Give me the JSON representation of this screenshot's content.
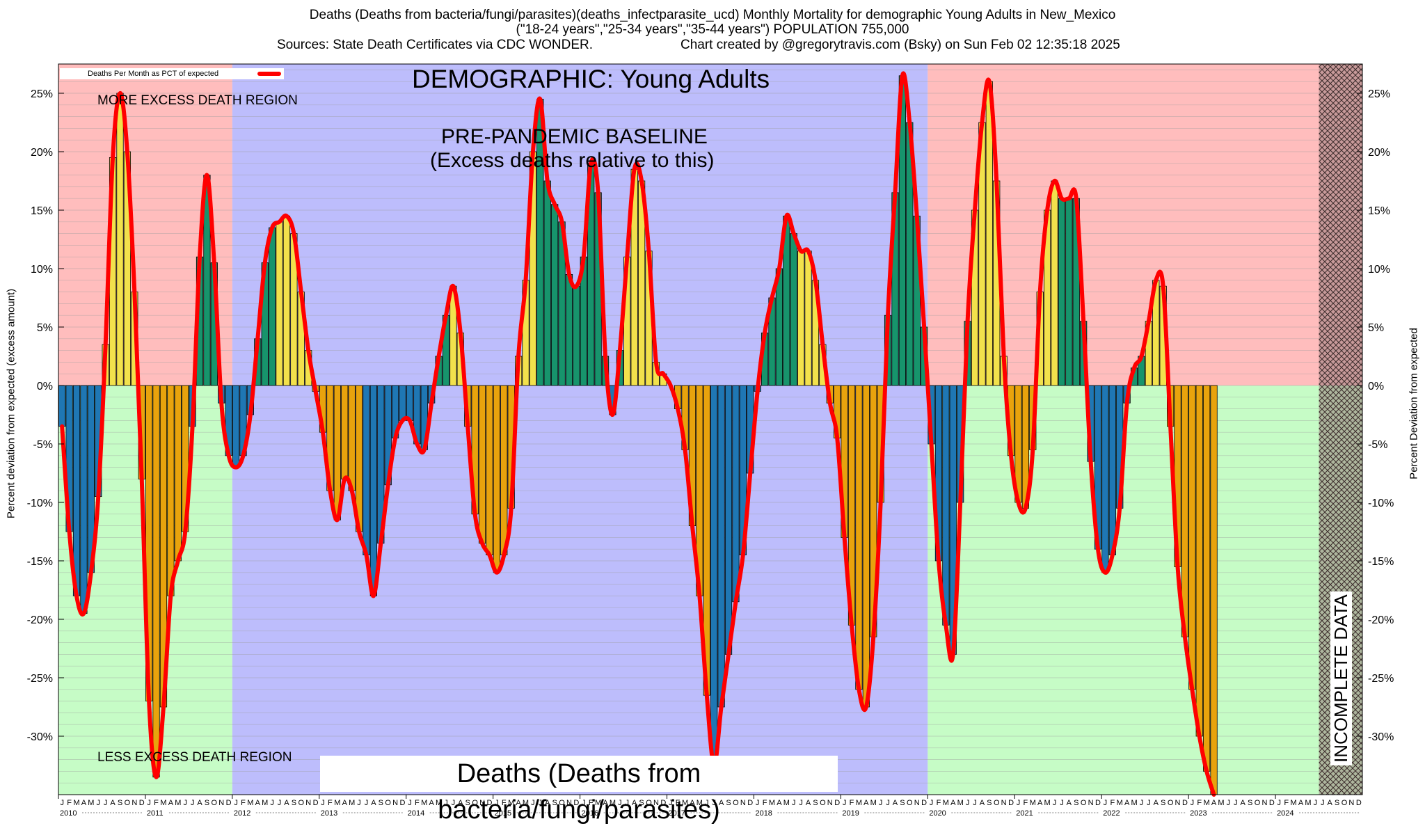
{
  "header": {
    "line1": "Deaths (Deaths from bacteria/fungi/parasites)(deaths_infectparasite_ucd) Monthly Mortality for demographic Young Adults in New_Mexico",
    "line2": "(\"18-24 years\",\"25-34 years\",\"35-44 years\") POPULATION 755,000",
    "sources": "Sources: State Death Certificates via CDC WONDER.",
    "created": "Chart created by @gregorytravis.com (Bsky) on Sun Feb 02 12:35:18 2025"
  },
  "annotations": {
    "demographic": "DEMOGRAPHIC: Young Adults",
    "baseline_1": "PRE-PANDEMIC BASELINE",
    "baseline_2": "(Excess deaths relative to this)",
    "more_excess": "MORE EXCESS DEATH REGION",
    "less_excess": "LESS EXCESS DEATH REGION",
    "bottom_title": "Deaths (Deaths from bacteria/fungi/parasites)",
    "incomplete": "INCOMPLETE DATA"
  },
  "colors": {
    "excess_region": "#ffbdbd",
    "deficit_region": "#c6fcc6",
    "baseline_region": "#bdbdfc",
    "bar_blue": "#1f77b4",
    "bar_green": "#17946c",
    "bar_yellow": "#f2e14c",
    "bar_orange": "#e8a30d",
    "line": "#ff0000",
    "incomplete_hatch": "#7a5a5a"
  },
  "chart_data": {
    "type": "bar",
    "title": "Deaths (Deaths from bacteria/fungi/parasites)(deaths_infectparasite_ucd) Monthly Mortality for demographic Young Adults in New_Mexico",
    "ylabel": "Percent deviation from expected (excess amount)",
    "ylabel_right": "Percent Deviation from expected",
    "legend": "Deaths Per Month as PCT of expected",
    "legend_position": "top-left",
    "ylim": [
      -35,
      27.5
    ],
    "yticks": [
      25,
      20,
      15,
      10,
      5,
      0,
      -5,
      -10,
      -15,
      -20,
      -25,
      -30
    ],
    "ytick_labels": [
      "25%",
      "20%",
      "15%",
      "10%",
      "5%",
      "0%",
      "-5%",
      "-10%",
      "-15%",
      "-20%",
      "-25%",
      "-30%"
    ],
    "x_start": "2010-01",
    "x_end": "2024-12",
    "years": [
      "2010",
      "2011",
      "2012",
      "2013",
      "2014",
      "2015",
      "2016",
      "2017",
      "2018",
      "2019",
      "2020",
      "2021",
      "2022",
      "2023",
      "2024"
    ],
    "month_letters": [
      "J",
      "F",
      "M",
      "A",
      "M",
      "J",
      "J",
      "A",
      "S",
      "O",
      "N",
      "D"
    ],
    "baseline_period": [
      "2012-01",
      "2019-12"
    ],
    "incomplete_from": "2024-07",
    "grid": true,
    "series": [
      {
        "name": "Deaths Per Month as PCT of expected",
        "values": [
          -3.5,
          -12.5,
          -18.0,
          -19.5,
          -16.0,
          -9.5,
          3.5,
          19.5,
          25.0,
          20.0,
          8.0,
          -8.0,
          -27.0,
          -33.5,
          -27.5,
          -18.0,
          -15.0,
          -12.5,
          -3.5,
          11.0,
          18.0,
          10.5,
          -1.5,
          -6.0,
          -7.0,
          -6.0,
          -2.5,
          4.0,
          10.5,
          13.5,
          14.0,
          14.5,
          13.0,
          8.0,
          3.0,
          -0.5,
          -4.0,
          -9.0,
          -11.5,
          -8.0,
          -9.0,
          -12.5,
          -14.5,
          -18.0,
          -13.5,
          -8.5,
          -4.5,
          -3.0,
          -3.0,
          -5.0,
          -5.5,
          -1.5,
          2.5,
          6.0,
          8.5,
          4.5,
          -3.5,
          -11.0,
          -13.5,
          -14.5,
          -16.0,
          -14.5,
          -10.5,
          2.5,
          9.0,
          20.0,
          24.5,
          17.5,
          15.5,
          14.0,
          9.5,
          8.5,
          11.0,
          19.0,
          16.5,
          2.5,
          -2.5,
          3.0,
          11.0,
          18.5,
          17.5,
          11.5,
          2.0,
          1.0,
          0.0,
          -2.0,
          -5.5,
          -12.0,
          -18.0,
          -26.5,
          -32.5,
          -27.5,
          -23.0,
          -18.5,
          -14.5,
          -7.5,
          -0.5,
          4.5,
          7.5,
          10.0,
          14.5,
          13.0,
          11.5,
          11.5,
          9.0,
          3.5,
          -1.5,
          -4.5,
          -13.0,
          -20.5,
          -26.0,
          -27.5,
          -21.5,
          -10.0,
          6.0,
          16.5,
          26.5,
          22.5,
          14.5,
          5.0,
          -5.0,
          -15.0,
          -20.5,
          -23.0,
          -10.0,
          5.5,
          15.0,
          22.5,
          26.0,
          17.5,
          2.5,
          -6.0,
          -10.0,
          -10.5,
          -5.5,
          8.0,
          15.0,
          17.5,
          16.0,
          16.0,
          16.0,
          5.5,
          -6.5,
          -14.0,
          -16.0,
          -14.5,
          -10.5,
          -1.5,
          1.5,
          2.5,
          5.5,
          9.0,
          8.5,
          -3.5,
          -15.5,
          -21.5,
          -26.0,
          -30.0,
          -33.0,
          -35.0
        ]
      }
    ]
  }
}
